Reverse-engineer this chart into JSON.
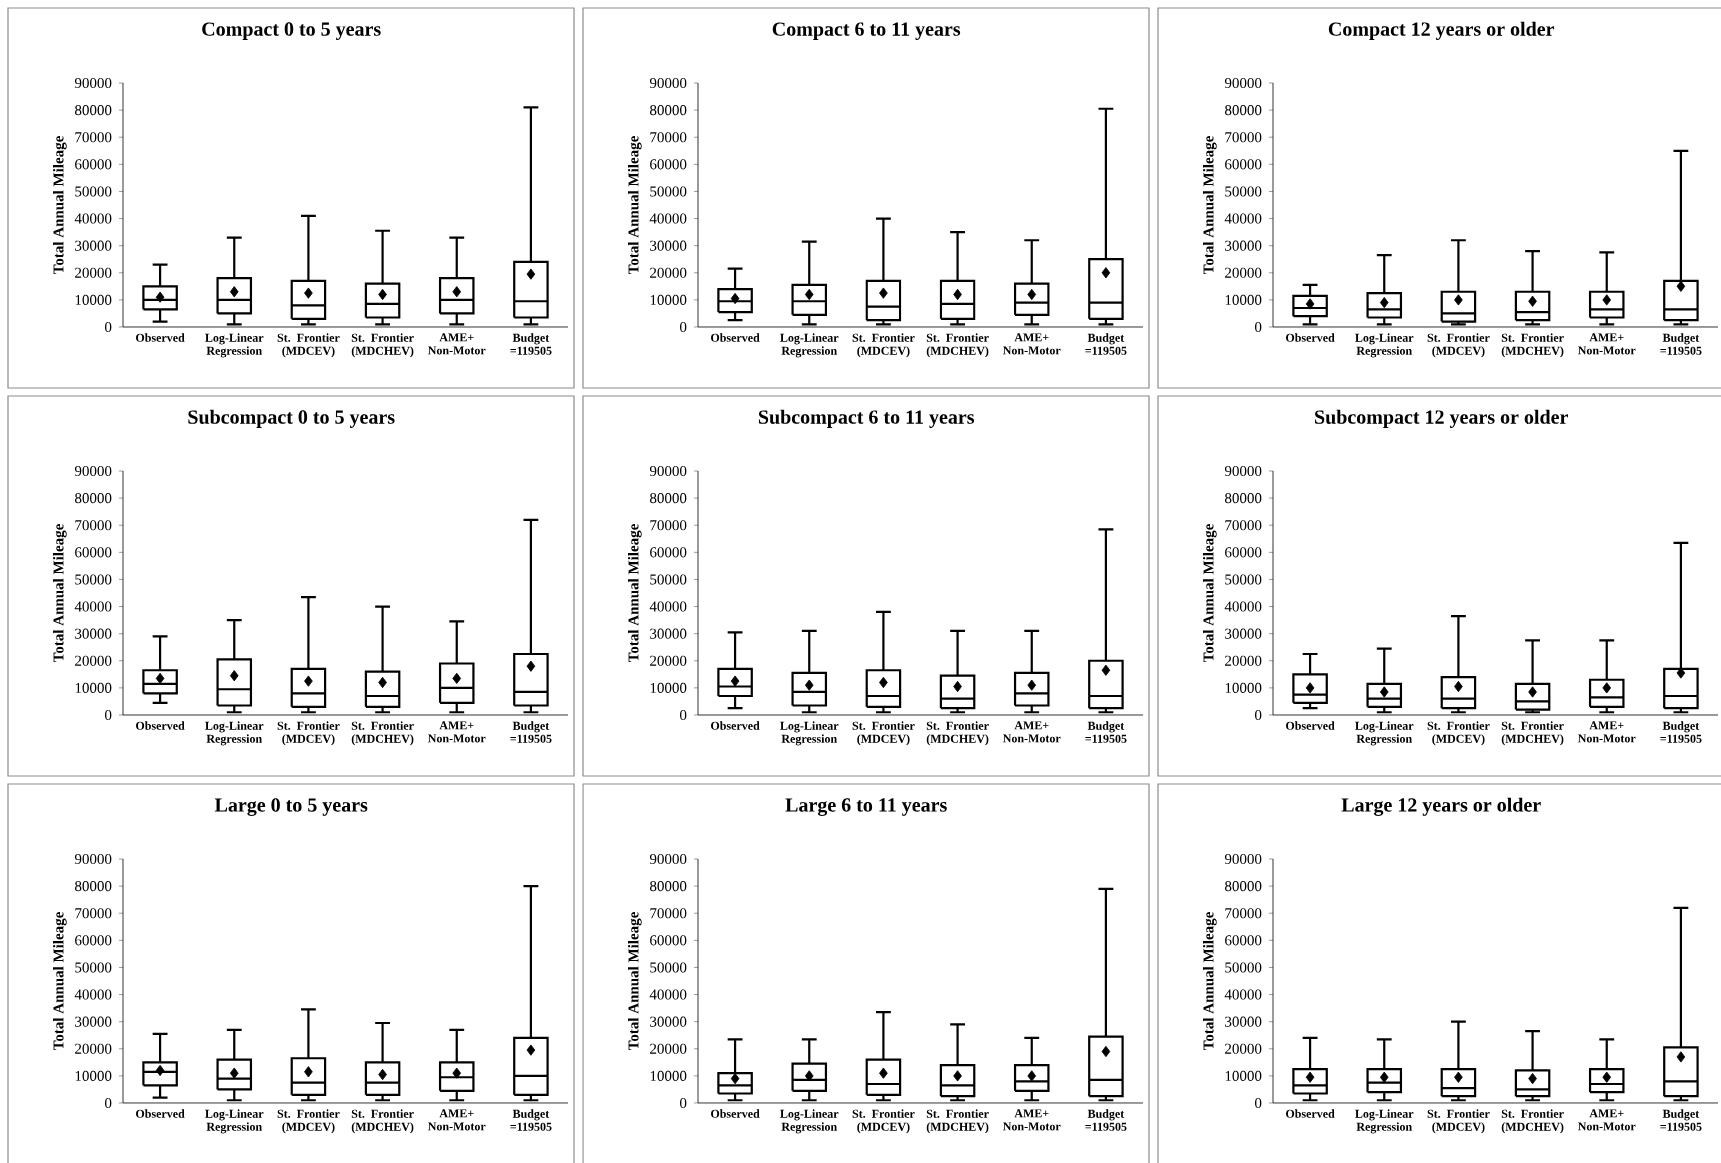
{
  "chart_data": [
    {
      "type": "box",
      "title": "Compact  0 to 5 years",
      "ylabel": "Total Annual Mileage",
      "color": "#000000",
      "categories": [
        "Observed",
        "Log-Linear Regression",
        "St. Frontier (MDCEV)",
        "St. Frontier (MDCHEV)",
        "AME+ Non-Motor",
        "Budget =119505"
      ],
      "ylim": [
        0,
        90000
      ],
      "yticks": [
        0,
        10000,
        20000,
        30000,
        40000,
        50000,
        60000,
        70000,
        80000,
        90000
      ],
      "boxes": [
        {
          "low": 2000,
          "q1": 6500,
          "median": 10000,
          "q3": 15000,
          "high": 23000,
          "mean": 11000
        },
        {
          "low": 1000,
          "q1": 5000,
          "median": 10000,
          "q3": 18000,
          "high": 33000,
          "mean": 13000
        },
        {
          "low": 1000,
          "q1": 3000,
          "median": 8000,
          "q3": 17000,
          "high": 41000,
          "mean": 12500
        },
        {
          "low": 1000,
          "q1": 3500,
          "median": 8500,
          "q3": 16000,
          "high": 35500,
          "mean": 12000
        },
        {
          "low": 1000,
          "q1": 5000,
          "median": 10000,
          "q3": 18000,
          "high": 33000,
          "mean": 13000
        },
        {
          "low": 1000,
          "q1": 3500,
          "median": 9500,
          "q3": 24000,
          "high": 81000,
          "mean": 19500
        }
      ]
    },
    {
      "type": "box",
      "title": "Compact  6 to 11 years",
      "ylabel": "Total Annual Mileage",
      "color": "#000000",
      "categories": [
        "Observed",
        "Log-Linear Regression",
        "St. Frontier (MDCEV)",
        "St. Frontier (MDCHEV)",
        "AME+ Non-Motor",
        "Budget =119505"
      ],
      "ylim": [
        0,
        90000
      ],
      "yticks": [
        0,
        10000,
        20000,
        30000,
        40000,
        50000,
        60000,
        70000,
        80000,
        90000
      ],
      "boxes": [
        {
          "low": 2500,
          "q1": 5500,
          "median": 9500,
          "q3": 14000,
          "high": 21500,
          "mean": 10500
        },
        {
          "low": 1000,
          "q1": 4500,
          "median": 9500,
          "q3": 15500,
          "high": 31500,
          "mean": 12000
        },
        {
          "low": 1000,
          "q1": 2500,
          "median": 7500,
          "q3": 17000,
          "high": 40000,
          "mean": 12500
        },
        {
          "low": 1000,
          "q1": 3000,
          "median": 8500,
          "q3": 17000,
          "high": 35000,
          "mean": 12000
        },
        {
          "low": 1000,
          "q1": 4500,
          "median": 9000,
          "q3": 16000,
          "high": 32000,
          "mean": 12000
        },
        {
          "low": 1000,
          "q1": 3000,
          "median": 9000,
          "q3": 25000,
          "high": 80500,
          "mean": 20000
        }
      ]
    },
    {
      "type": "box",
      "title": "Compact  12 years or older",
      "ylabel": "Total Annual Mileage",
      "color": "#000000",
      "categories": [
        "Observed",
        "Log-Linear Regression",
        "St. Frontier (MDCEV)",
        "St. Frontier (MDCHEV)",
        "AME+ Non-Motor",
        "Budget =119505"
      ],
      "ylim": [
        0,
        90000
      ],
      "yticks": [
        0,
        10000,
        20000,
        30000,
        40000,
        50000,
        60000,
        70000,
        80000,
        90000
      ],
      "boxes": [
        {
          "low": 1000,
          "q1": 4000,
          "median": 7000,
          "q3": 11500,
          "high": 15500,
          "mean": 8500
        },
        {
          "low": 1000,
          "q1": 3500,
          "median": 6500,
          "q3": 12500,
          "high": 26500,
          "mean": 9000
        },
        {
          "low": 1000,
          "q1": 2000,
          "median": 5000,
          "q3": 13000,
          "high": 32000,
          "mean": 10000
        },
        {
          "low": 1000,
          "q1": 2500,
          "median": 5500,
          "q3": 13000,
          "high": 28000,
          "mean": 9500
        },
        {
          "low": 1000,
          "q1": 3500,
          "median": 6500,
          "q3": 13000,
          "high": 27500,
          "mean": 10000
        },
        {
          "low": 1000,
          "q1": 2500,
          "median": 6500,
          "q3": 17000,
          "high": 65000,
          "mean": 15000
        }
      ]
    },
    {
      "type": "box",
      "title": "Subcompact  0 to 5 years",
      "ylabel": "Total Annual Mileage",
      "color": "#000000",
      "categories": [
        "Observed",
        "Log-Linear Regression",
        "St. Frontier (MDCEV)",
        "St. Frontier (MDCHEV)",
        "AME+ Non-Motor",
        "Budget =119505"
      ],
      "ylim": [
        0,
        90000
      ],
      "yticks": [
        0,
        10000,
        20000,
        30000,
        40000,
        50000,
        60000,
        70000,
        80000,
        90000
      ],
      "boxes": [
        {
          "low": 4500,
          "q1": 8000,
          "median": 11500,
          "q3": 16500,
          "high": 29000,
          "mean": 13500
        },
        {
          "low": 1000,
          "q1": 3500,
          "median": 9500,
          "q3": 20500,
          "high": 35000,
          "mean": 14500
        },
        {
          "low": 1000,
          "q1": 3000,
          "median": 8000,
          "q3": 17000,
          "high": 43500,
          "mean": 12500
        },
        {
          "low": 1000,
          "q1": 3000,
          "median": 7000,
          "q3": 16000,
          "high": 40000,
          "mean": 12000
        },
        {
          "low": 1000,
          "q1": 4500,
          "median": 10000,
          "q3": 19000,
          "high": 34500,
          "mean": 13500
        },
        {
          "low": 1000,
          "q1": 3500,
          "median": 8500,
          "q3": 22500,
          "high": 72000,
          "mean": 18000
        }
      ]
    },
    {
      "type": "box",
      "title": "Subcompact  6 to 11 years",
      "ylabel": "Total Annual Mileage",
      "color": "#000000",
      "categories": [
        "Observed",
        "Log-Linear Regression",
        "St. Frontier (MDCEV)",
        "St. Frontier (MDCHEV)",
        "AME+ Non-Motor",
        "Budget =119505"
      ],
      "ylim": [
        0,
        90000
      ],
      "yticks": [
        0,
        10000,
        20000,
        30000,
        40000,
        50000,
        60000,
        70000,
        80000,
        90000
      ],
      "boxes": [
        {
          "low": 2500,
          "q1": 7000,
          "median": 10500,
          "q3": 17000,
          "high": 30500,
          "mean": 12500
        },
        {
          "low": 1000,
          "q1": 3500,
          "median": 8500,
          "q3": 15500,
          "high": 31000,
          "mean": 11000
        },
        {
          "low": 1000,
          "q1": 3000,
          "median": 7000,
          "q3": 16500,
          "high": 38000,
          "mean": 12000
        },
        {
          "low": 1000,
          "q1": 2500,
          "median": 6000,
          "q3": 14500,
          "high": 31000,
          "mean": 10500
        },
        {
          "low": 1000,
          "q1": 3500,
          "median": 8000,
          "q3": 15500,
          "high": 31000,
          "mean": 11000
        },
        {
          "low": 1000,
          "q1": 2500,
          "median": 7000,
          "q3": 20000,
          "high": 68500,
          "mean": 16500
        }
      ]
    },
    {
      "type": "box",
      "title": "Subcompact  12 years or older",
      "ylabel": "Total Annual Mileage",
      "color": "#000000",
      "categories": [
        "Observed",
        "Log-Linear Regression",
        "St. Frontier (MDCEV)",
        "St. Frontier (MDCHEV)",
        "AME+ Non-Motor",
        "Budget =119505"
      ],
      "ylim": [
        0,
        90000
      ],
      "yticks": [
        0,
        10000,
        20000,
        30000,
        40000,
        50000,
        60000,
        70000,
        80000,
        90000
      ],
      "boxes": [
        {
          "low": 2500,
          "q1": 4500,
          "median": 7500,
          "q3": 15000,
          "high": 22500,
          "mean": 10000
        },
        {
          "low": 1000,
          "q1": 3000,
          "median": 6000,
          "q3": 11500,
          "high": 24500,
          "mean": 8500
        },
        {
          "low": 1000,
          "q1": 2500,
          "median": 6000,
          "q3": 14000,
          "high": 36500,
          "mean": 10500
        },
        {
          "low": 1000,
          "q1": 2000,
          "median": 5000,
          "q3": 11500,
          "high": 27500,
          "mean": 8500
        },
        {
          "low": 1000,
          "q1": 3000,
          "median": 6500,
          "q3": 13000,
          "high": 27500,
          "mean": 10000
        },
        {
          "low": 1000,
          "q1": 2500,
          "median": 7000,
          "q3": 17000,
          "high": 63500,
          "mean": 15500
        }
      ]
    },
    {
      "type": "box",
      "title": "Large 0 to 5 years",
      "ylabel": "Total Annual Mileage",
      "color": "#000000",
      "categories": [
        "Observed",
        "Log-Linear Regression",
        "St. Frontier (MDCEV)",
        "St. Frontier (MDCHEV)",
        "AME+ Non-Motor",
        "Budget =119505"
      ],
      "ylim": [
        0,
        90000
      ],
      "yticks": [
        0,
        10000,
        20000,
        30000,
        40000,
        50000,
        60000,
        70000,
        80000,
        90000
      ],
      "boxes": [
        {
          "low": 2000,
          "q1": 6500,
          "median": 11500,
          "q3": 15000,
          "high": 25500,
          "mean": 12000
        },
        {
          "low": 1000,
          "q1": 5000,
          "median": 9000,
          "q3": 16000,
          "high": 27000,
          "mean": 11000
        },
        {
          "low": 1000,
          "q1": 3000,
          "median": 7500,
          "q3": 16500,
          "high": 34500,
          "mean": 11500
        },
        {
          "low": 1000,
          "q1": 3000,
          "median": 7500,
          "q3": 15000,
          "high": 29500,
          "mean": 10500
        },
        {
          "low": 1000,
          "q1": 4500,
          "median": 9500,
          "q3": 15000,
          "high": 27000,
          "mean": 11000
        },
        {
          "low": 1000,
          "q1": 3000,
          "median": 10000,
          "q3": 24000,
          "high": 80000,
          "mean": 19500
        }
      ]
    },
    {
      "type": "box",
      "title": "Large 6 to 11 years",
      "ylabel": "Total Annual Mileage",
      "color": "#000000",
      "categories": [
        "Observed",
        "Log-Linear Regression",
        "St. Frontier (MDCEV)",
        "St. Frontier (MDCHEV)",
        "AME+ Non-Motor",
        "Budget =119505"
      ],
      "ylim": [
        0,
        90000
      ],
      "yticks": [
        0,
        10000,
        20000,
        30000,
        40000,
        50000,
        60000,
        70000,
        80000,
        90000
      ],
      "boxes": [
        {
          "low": 1000,
          "q1": 3500,
          "median": 6500,
          "q3": 11000,
          "high": 23500,
          "mean": 9000
        },
        {
          "low": 1000,
          "q1": 4500,
          "median": 8500,
          "q3": 14500,
          "high": 23500,
          "mean": 10000
        },
        {
          "low": 1000,
          "q1": 3000,
          "median": 7000,
          "q3": 16000,
          "high": 33500,
          "mean": 11000
        },
        {
          "low": 1000,
          "q1": 2500,
          "median": 6500,
          "q3": 14000,
          "high": 29000,
          "mean": 10000
        },
        {
          "low": 1000,
          "q1": 4500,
          "median": 8000,
          "q3": 14000,
          "high": 24000,
          "mean": 10000
        },
        {
          "low": 1000,
          "q1": 2500,
          "median": 8500,
          "q3": 24500,
          "high": 79000,
          "mean": 19000
        }
      ]
    },
    {
      "type": "box",
      "title": "Large 12 years or older",
      "ylabel": "Total Annual Mileage",
      "color": "#000000",
      "categories": [
        "Observed",
        "Log-Linear Regression",
        "St. Frontier (MDCEV)",
        "St. Frontier (MDCHEV)",
        "AME+ Non-Motor",
        "Budget =119505"
      ],
      "ylim": [
        0,
        90000
      ],
      "yticks": [
        0,
        10000,
        20000,
        30000,
        40000,
        50000,
        60000,
        70000,
        80000,
        90000
      ],
      "boxes": [
        {
          "low": 1000,
          "q1": 3500,
          "median": 6500,
          "q3": 12500,
          "high": 24000,
          "mean": 9500
        },
        {
          "low": 1000,
          "q1": 4000,
          "median": 7500,
          "q3": 12500,
          "high": 23500,
          "mean": 9500
        },
        {
          "low": 1000,
          "q1": 2500,
          "median": 5500,
          "q3": 12500,
          "high": 30000,
          "mean": 9500
        },
        {
          "low": 1000,
          "q1": 2500,
          "median": 5000,
          "q3": 12000,
          "high": 26500,
          "mean": 9000
        },
        {
          "low": 1000,
          "q1": 4000,
          "median": 7000,
          "q3": 12500,
          "high": 23500,
          "mean": 9500
        },
        {
          "low": 1000,
          "q1": 2500,
          "median": 8000,
          "q3": 20500,
          "high": 72000,
          "mean": 17000
        }
      ]
    }
  ]
}
